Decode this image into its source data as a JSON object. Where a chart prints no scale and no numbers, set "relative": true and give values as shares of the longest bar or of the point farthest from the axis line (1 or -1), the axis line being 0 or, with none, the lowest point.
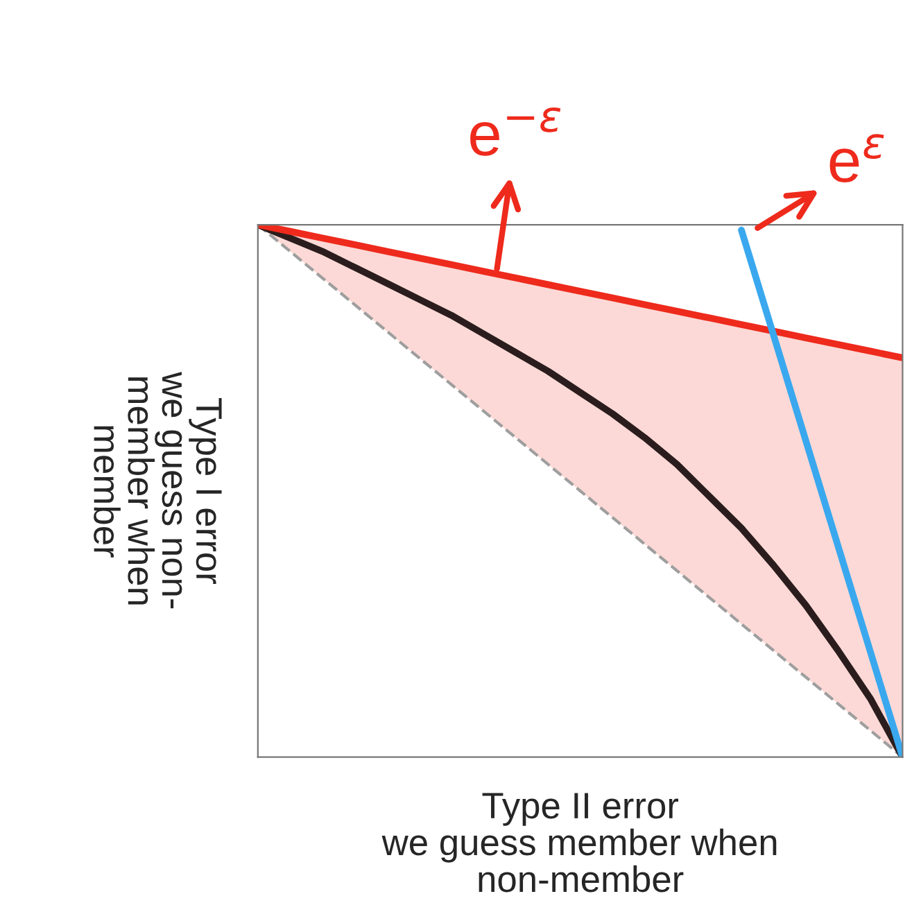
{
  "chart_data": {
    "type": "line",
    "relative": true,
    "xlabel": "Type II error\nwe guess member when\nnon-member",
    "ylabel": "Type I error\nwe guess non-\nmember when\nmember",
    "legend": false,
    "marker": "none",
    "categories": [
      null,
      null,
      null,
      null,
      null,
      null,
      null,
      null,
      null,
      null,
      null,
      null,
      null,
      null,
      null,
      null,
      null,
      null,
      null,
      null,
      null
    ],
    "series": [
      {
        "color": "#9e9e9e",
        "line_style": "dashed",
        "values": [
          1,
          0.95,
          0.9,
          0.85,
          0.8,
          0.75,
          0.7,
          0.65,
          0.6,
          0.55,
          0.5,
          0.45,
          0.4,
          0.35,
          0.3,
          0.25,
          0.2,
          0.15,
          0.1,
          0.05,
          0
        ],
        "lower": [
          1,
          0.95,
          0.9,
          0.85,
          0.8,
          0.75,
          0.7,
          0.65,
          0.6,
          0.55,
          0.5,
          0.45,
          0.4,
          0.35,
          0.3,
          0.25,
          0.2,
          0.15,
          0.1,
          0.05,
          0
        ],
        "upper": [
          1,
          0.9875,
          0.975,
          0.9625,
          0.95,
          0.9375,
          0.925,
          0.9125,
          0.9,
          0.8875,
          0.875,
          0.8625,
          0.85,
          0.8375,
          0.825,
          0.8125,
          0.8,
          0.7875,
          0.775,
          0.7625,
          0.75
        ]
      },
      {
        "color": "#2b1d1d",
        "values": [
          1,
          0.975,
          0.95,
          0.92,
          0.89,
          0.86,
          0.83,
          0.795,
          0.76,
          0.725,
          0.685,
          0.645,
          0.6,
          0.55,
          0.49,
          0.43,
          0.36,
          0.285,
          0.2,
          0.11,
          0
        ]
      },
      {
        "color": "#ee2a1c",
        "values": [
          1,
          0.9875,
          0.975,
          0.9625,
          0.95,
          0.9375,
          0.925,
          0.9125,
          0.9,
          0.8875,
          0.875,
          0.8625,
          0.85,
          0.8375,
          0.825,
          0.8125,
          0.8,
          0.7875,
          0.775,
          0.7625,
          0.75
        ]
      },
      {
        "color": "#3aa8ee",
        "values": [
          null,
          null,
          null,
          null,
          null,
          null,
          null,
          null,
          null,
          null,
          null,
          null,
          null,
          null,
          null,
          0.99,
          0.792,
          0.594,
          0.396,
          0.198,
          0
        ]
      }
    ],
    "annotations": [
      "e$^{−ε}$",
      "e$^{ε}$"
    ]
  }
}
